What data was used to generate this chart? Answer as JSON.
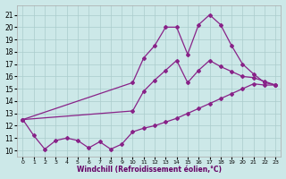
{
  "xlabel": "Windchill (Refroidissement éolien,°C)",
  "x_ticks": [
    0,
    1,
    2,
    3,
    4,
    5,
    6,
    7,
    8,
    9,
    10,
    11,
    12,
    13,
    14,
    15,
    16,
    17,
    18,
    19,
    20,
    21,
    22,
    23
  ],
  "y_ticks": [
    10,
    11,
    12,
    13,
    14,
    15,
    16,
    17,
    18,
    19,
    20,
    21
  ],
  "xlim": [
    -0.5,
    23.5
  ],
  "ylim": [
    9.5,
    21.8
  ],
  "bg_color": "#cce8e8",
  "grid_color": "#aacccc",
  "line_color": "#882288",
  "line1_x": [
    0,
    1,
    2,
    3,
    4,
    5,
    6,
    7,
    8,
    9,
    10,
    11,
    12,
    13,
    14,
    15,
    16,
    17,
    18,
    19,
    20,
    21,
    22,
    23
  ],
  "line1_y": [
    12.5,
    11.2,
    10.1,
    10.8,
    11.0,
    10.8,
    10.2,
    10.7,
    10.1,
    10.5,
    11.5,
    11.8,
    12.0,
    12.3,
    12.6,
    13.0,
    13.4,
    13.8,
    14.2,
    14.6,
    15.0,
    15.4,
    15.3,
    15.3
  ],
  "line2_x": [
    0,
    10,
    11,
    12,
    13,
    14,
    15,
    16,
    17,
    18,
    19,
    20,
    21,
    22,
    23
  ],
  "line2_y": [
    12.5,
    15.5,
    17.5,
    18.5,
    20.0,
    20.0,
    17.8,
    20.2,
    21.0,
    20.2,
    18.5,
    17.0,
    16.2,
    15.5,
    15.3
  ],
  "line3_x": [
    0,
    10,
    11,
    12,
    13,
    14,
    15,
    16,
    17,
    18,
    19,
    20,
    21,
    22,
    23
  ],
  "line3_y": [
    12.5,
    13.2,
    14.8,
    15.7,
    16.5,
    17.3,
    15.5,
    16.5,
    17.3,
    16.8,
    16.4,
    16.0,
    15.9,
    15.6,
    15.3
  ]
}
